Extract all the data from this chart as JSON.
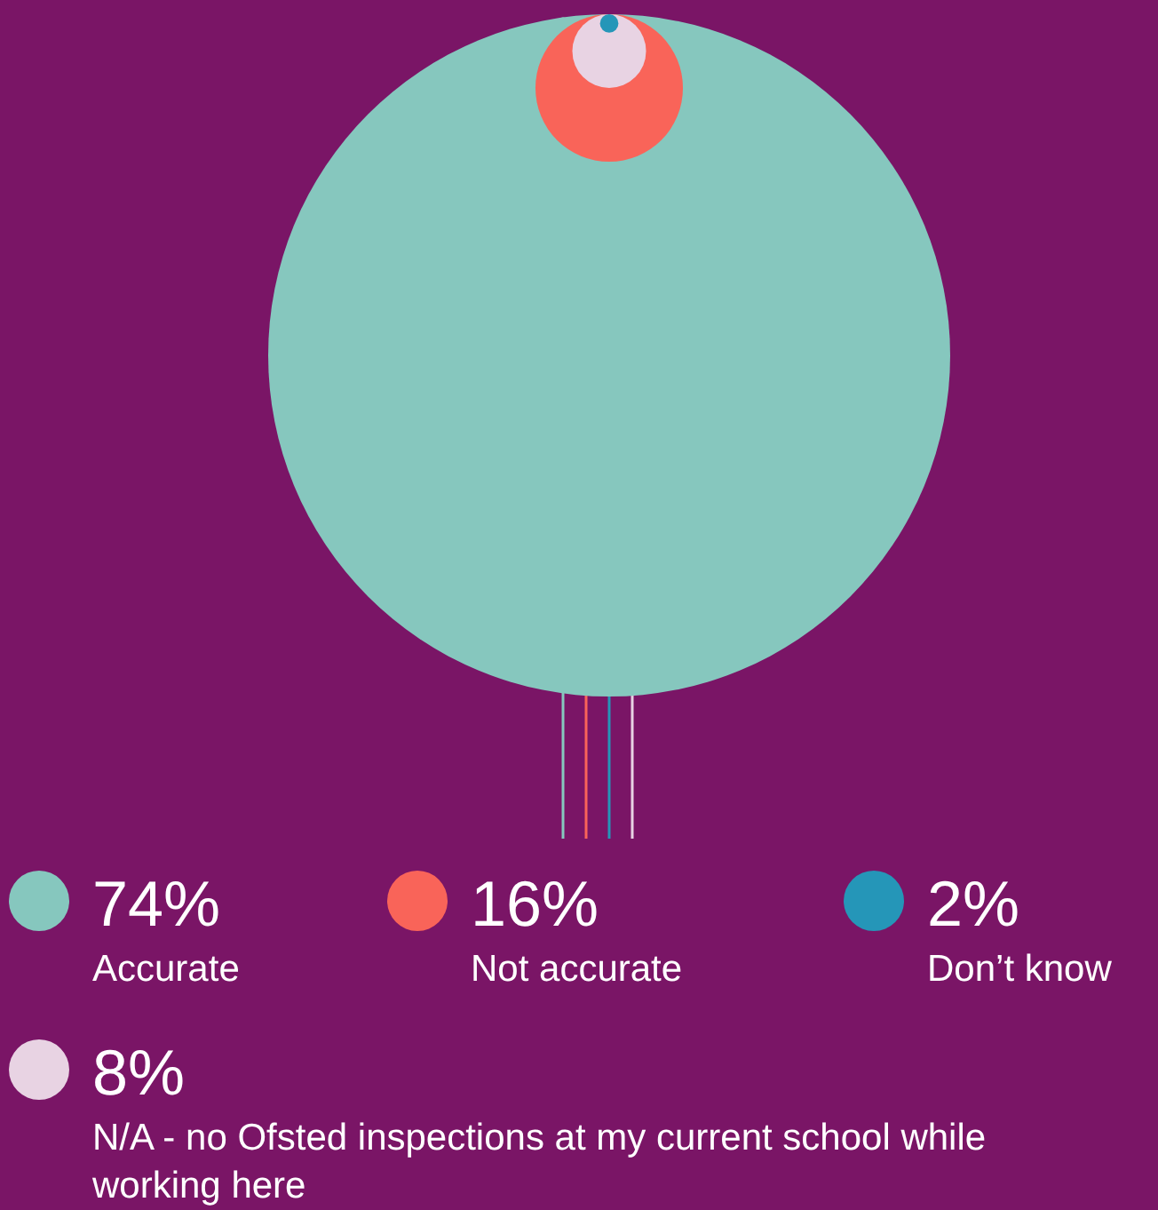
{
  "chart_data": {
    "type": "other",
    "categories": [
      "Accurate",
      "Not accurate",
      "Don’t know",
      "N/A - no Ofsted inspections at my current school while working here"
    ],
    "values": [
      74,
      16,
      2,
      8
    ],
    "colors": [
      "#86c7be",
      "#f96459",
      "#2596b8",
      "#e8d3e3"
    ],
    "value_labels": [
      "74%",
      "16%",
      "2%",
      "8%"
    ]
  }
}
